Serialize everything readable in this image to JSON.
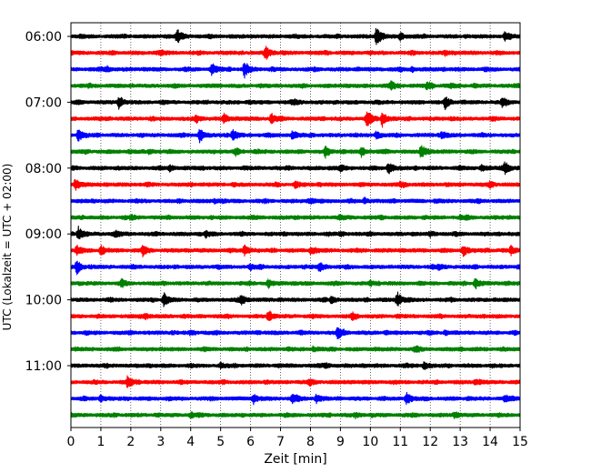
{
  "chart_data": {
    "type": "line",
    "title": "",
    "xlabel": "Zeit  [min]",
    "ylabel": "UTC (Lokalzeit = UTC + 02:00)",
    "xlim": [
      0,
      15
    ],
    "x_ticks": [
      0,
      1,
      2,
      3,
      4,
      5,
      6,
      7,
      8,
      9,
      10,
      11,
      12,
      13,
      14,
      15
    ],
    "x_tick_labels": [
      "0",
      "1",
      "2",
      "3",
      "4",
      "5",
      "6",
      "7",
      "8",
      "9",
      "10",
      "11",
      "12",
      "13",
      "14",
      "15"
    ],
    "grid": "vertical dotted",
    "start_time": "06:00",
    "row_interval_minutes": 15,
    "y_tick_labels": [
      "06:00",
      "07:00",
      "08:00",
      "09:00",
      "10:00",
      "11:00"
    ],
    "colors": [
      "#000000",
      "#ff0000",
      "#0000ff",
      "#008000"
    ],
    "rows": [
      {
        "time": "06:00",
        "color": "#000000",
        "events": [
          [
            3.55,
            1.0
          ],
          [
            10.2,
            1.3
          ],
          [
            11.0,
            0.5
          ],
          [
            14.5,
            0.6
          ]
        ]
      },
      {
        "time": "06:15",
        "color": "#ff0000",
        "events": [
          [
            6.5,
            1.0
          ],
          [
            3.0,
            0.3
          ],
          [
            12.5,
            0.3
          ]
        ]
      },
      {
        "time": "06:30",
        "color": "#0000ff",
        "events": [
          [
            4.7,
            0.9
          ],
          [
            5.8,
            1.2
          ],
          [
            1.2,
            0.4
          ],
          [
            11.4,
            0.3
          ]
        ]
      },
      {
        "time": "06:45",
        "color": "#008000",
        "events": [
          [
            10.7,
            0.6
          ],
          [
            11.9,
            0.5
          ],
          [
            12.7,
            0.3
          ]
        ]
      },
      {
        "time": "07:00",
        "color": "#000000",
        "events": [
          [
            1.6,
            0.8
          ],
          [
            12.5,
            0.9
          ],
          [
            14.4,
            0.6
          ],
          [
            7.5,
            0.3
          ]
        ]
      },
      {
        "time": "07:15",
        "color": "#ff0000",
        "events": [
          [
            9.9,
            1.3
          ],
          [
            10.4,
            1.1
          ],
          [
            5.1,
            0.7
          ],
          [
            6.7,
            0.7
          ],
          [
            4.2,
            0.4
          ]
        ]
      },
      {
        "time": "07:30",
        "color": "#0000ff",
        "events": [
          [
            0.25,
            0.9
          ],
          [
            4.3,
            1.1
          ],
          [
            5.4,
            0.7
          ],
          [
            7.4,
            0.6
          ],
          [
            10.2,
            0.5
          ],
          [
            12.4,
            0.4
          ]
        ]
      },
      {
        "time": "07:45",
        "color": "#008000",
        "events": [
          [
            8.5,
            0.8
          ],
          [
            9.7,
            0.7
          ],
          [
            11.7,
            1.0
          ],
          [
            5.5,
            0.5
          ],
          [
            2.6,
            0.3
          ]
        ]
      },
      {
        "time": "08:00",
        "color": "#000000",
        "events": [
          [
            10.6,
            1.0
          ],
          [
            14.5,
            1.0
          ],
          [
            9.0,
            0.4
          ],
          [
            3.3,
            0.4
          ],
          [
            13.7,
            0.4
          ]
        ]
      },
      {
        "time": "08:15",
        "color": "#ff0000",
        "events": [
          [
            0.15,
            0.9
          ],
          [
            7.5,
            0.4
          ],
          [
            14.0,
            0.3
          ],
          [
            11.0,
            0.3
          ]
        ]
      },
      {
        "time": "08:30",
        "color": "#0000ff",
        "events": [
          [
            9.8,
            0.4
          ],
          [
            4.8,
            0.3
          ],
          [
            8.0,
            0.3
          ]
        ]
      },
      {
        "time": "08:45",
        "color": "#008000",
        "events": [
          [
            2.0,
            0.3
          ],
          [
            9.0,
            0.2
          ],
          [
            13.0,
            0.2
          ]
        ]
      },
      {
        "time": "09:00",
        "color": "#000000",
        "events": [
          [
            0.25,
            1.0
          ],
          [
            1.5,
            0.4
          ],
          [
            4.5,
            0.4
          ],
          [
            9.0,
            0.3
          ],
          [
            12.0,
            0.3
          ]
        ]
      },
      {
        "time": "09:15",
        "color": "#ff0000",
        "events": [
          [
            0.2,
            0.7
          ],
          [
            1.0,
            0.5
          ],
          [
            2.4,
            0.7
          ],
          [
            5.8,
            0.8
          ],
          [
            8.0,
            0.5
          ],
          [
            13.1,
            0.8
          ],
          [
            14.7,
            0.7
          ]
        ]
      },
      {
        "time": "09:30",
        "color": "#0000ff",
        "events": [
          [
            0.2,
            1.0
          ],
          [
            8.3,
            0.7
          ],
          [
            6.0,
            0.3
          ],
          [
            12.3,
            0.4
          ]
        ]
      },
      {
        "time": "09:45",
        "color": "#008000",
        "events": [
          [
            6.6,
            0.5
          ],
          [
            13.5,
            0.8
          ],
          [
            1.7,
            0.4
          ],
          [
            10.0,
            0.3
          ]
        ]
      },
      {
        "time": "10:00",
        "color": "#000000",
        "events": [
          [
            3.1,
            1.0
          ],
          [
            5.7,
            0.7
          ],
          [
            10.9,
            1.2
          ],
          [
            8.7,
            0.4
          ]
        ]
      },
      {
        "time": "10:15",
        "color": "#ff0000",
        "events": [
          [
            6.6,
            0.7
          ],
          [
            9.4,
            0.4
          ],
          [
            2.5,
            0.3
          ]
        ]
      },
      {
        "time": "10:30",
        "color": "#0000ff",
        "events": [
          [
            8.9,
            1.0
          ],
          [
            12.5,
            0.3
          ],
          [
            4.0,
            0.3
          ]
        ]
      },
      {
        "time": "10:45",
        "color": "#008000",
        "events": [
          [
            8.1,
            0.4
          ],
          [
            11.5,
            0.3
          ]
        ]
      },
      {
        "time": "11:00",
        "color": "#000000",
        "events": [
          [
            11.8,
            0.5
          ],
          [
            5.0,
            0.3
          ],
          [
            8.5,
            0.3
          ]
        ]
      },
      {
        "time": "11:15",
        "color": "#ff0000",
        "events": [
          [
            1.9,
            0.9
          ],
          [
            8.0,
            0.3
          ],
          [
            13.5,
            0.3
          ]
        ]
      },
      {
        "time": "11:30",
        "color": "#0000ff",
        "events": [
          [
            11.2,
            1.0
          ],
          [
            6.1,
            0.6
          ],
          [
            7.4,
            0.6
          ],
          [
            8.2,
            0.6
          ],
          [
            1.0,
            0.5
          ],
          [
            14.5,
            0.5
          ]
        ]
      },
      {
        "time": "11:45",
        "color": "#008000",
        "events": [
          [
            4.0,
            0.3
          ],
          [
            9.5,
            0.3
          ],
          [
            12.8,
            0.3
          ]
        ]
      }
    ]
  }
}
